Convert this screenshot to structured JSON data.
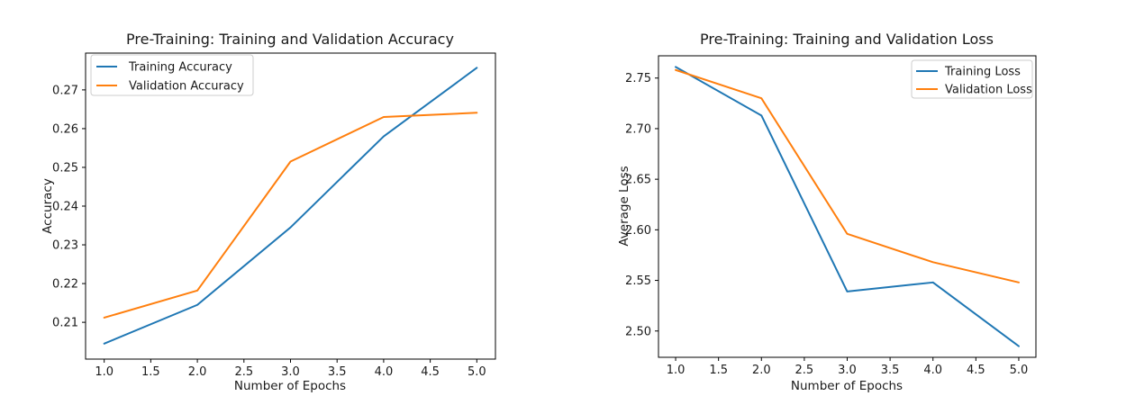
{
  "page": {
    "background": "#ffffff"
  },
  "chart_data": [
    {
      "type": "line",
      "title": "Pre-Training: Training and Validation Accuracy",
      "xlabel": "Number of Epochs",
      "ylabel": "Accuracy",
      "x": [
        1.0,
        2.0,
        3.0,
        4.0,
        5.0
      ],
      "series": [
        {
          "name": "Training Accuracy",
          "color": "#1f77b4",
          "values": [
            0.2045,
            0.2145,
            0.2345,
            0.258,
            0.2757
          ]
        },
        {
          "name": "Validation Accuracy",
          "color": "#ff7f0e",
          "values": [
            0.2112,
            0.2182,
            0.2515,
            0.263,
            0.2641
          ]
        }
      ],
      "xlim": [
        0.8,
        5.2
      ],
      "ylim": [
        0.2005,
        0.2795
      ],
      "xticks": {
        "values": [
          1.0,
          1.5,
          2.0,
          2.5,
          3.0,
          3.5,
          4.0,
          4.5,
          5.0
        ],
        "labels": [
          "1.0",
          "1.5",
          "2.0",
          "2.5",
          "3.0",
          "3.5",
          "4.0",
          "4.5",
          "5.0"
        ]
      },
      "yticks": {
        "values": [
          0.21,
          0.22,
          0.23,
          0.24,
          0.25,
          0.26,
          0.27
        ],
        "labels": [
          "0.21",
          "0.22",
          "0.23",
          "0.24",
          "0.25",
          "0.26",
          "0.27"
        ]
      },
      "legend": {
        "position": "top-left",
        "frame_color": "#cccccc"
      },
      "grid": false,
      "axis_color": "#000000"
    },
    {
      "type": "line",
      "title": "Pre-Training: Training and Validation Loss",
      "xlabel": "Number of Epochs",
      "ylabel": "Average Loss",
      "x": [
        1.0,
        2.0,
        3.0,
        4.0,
        5.0
      ],
      "series": [
        {
          "name": "Training Loss",
          "color": "#1f77b4",
          "values": [
            2.761,
            2.713,
            2.539,
            2.548,
            2.485
          ]
        },
        {
          "name": "Validation Loss",
          "color": "#ff7f0e",
          "values": [
            2.758,
            2.73,
            2.596,
            2.568,
            2.548
          ]
        }
      ],
      "xlim": [
        0.8,
        5.2
      ],
      "ylim": [
        2.474,
        2.772
      ],
      "xticks": {
        "values": [
          1.0,
          1.5,
          2.0,
          2.5,
          3.0,
          3.5,
          4.0,
          4.5,
          5.0
        ],
        "labels": [
          "1.0",
          "1.5",
          "2.0",
          "2.5",
          "3.0",
          "3.5",
          "4.0",
          "4.5",
          "5.0"
        ]
      },
      "yticks": {
        "values": [
          2.5,
          2.55,
          2.6,
          2.65,
          2.7,
          2.75
        ],
        "labels": [
          "2.50",
          "2.55",
          "2.60",
          "2.65",
          "2.70",
          "2.75"
        ]
      },
      "legend": {
        "position": "top-right",
        "frame_color": "#cccccc"
      },
      "grid": false,
      "axis_color": "#000000"
    }
  ]
}
